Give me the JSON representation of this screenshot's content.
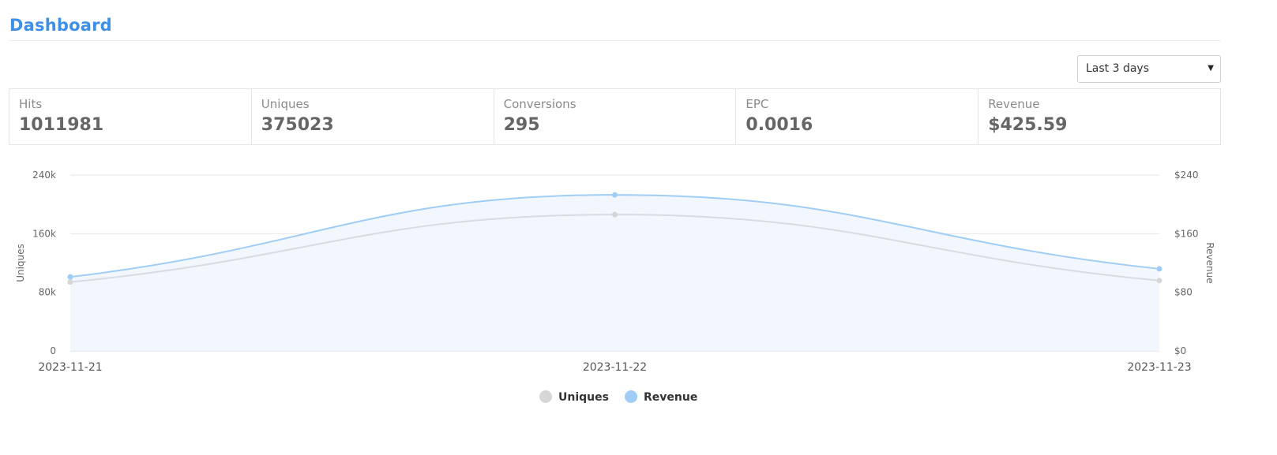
{
  "header": {
    "title": "Dashboard"
  },
  "range_select": {
    "selected": "Last 3 days"
  },
  "stats": [
    {
      "label": "Hits",
      "value": "1011981"
    },
    {
      "label": "Uniques",
      "value": "375023"
    },
    {
      "label": "Conversions",
      "value": "295"
    },
    {
      "label": "EPC",
      "value": "0.0016"
    },
    {
      "label": "Revenue",
      "value": "$425.59"
    }
  ],
  "colors": {
    "accent": "#3d8fe8",
    "uniques_line": "#d7dbe4",
    "uniques_point": "#d6d6d6",
    "revenue_line": "#9fcdf5",
    "revenue_fill": "#f2f7fe"
  },
  "chart_data": {
    "type": "line",
    "x": [
      "2023-11-21",
      "2023-11-22",
      "2023-11-23"
    ],
    "series": [
      {
        "name": "Uniques",
        "axis": "left",
        "values": [
          94000,
          186000,
          96000
        ]
      },
      {
        "name": "Revenue",
        "axis": "right",
        "values": [
          101,
          213,
          112
        ]
      }
    ],
    "ylabel": "Uniques",
    "ylabel_right": "Revenue",
    "ylim": [
      0,
      240000
    ],
    "ylim_right": [
      0,
      240
    ],
    "yticks": [
      "0",
      "80k",
      "160k",
      "240k"
    ],
    "yticks_right": [
      "$0",
      "$80",
      "$160",
      "$240"
    ],
    "grid": true,
    "legend": "bottom-center"
  }
}
